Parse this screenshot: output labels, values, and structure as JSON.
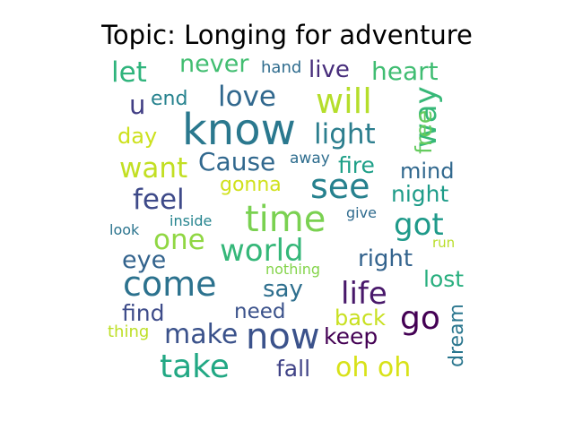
{
  "chart_data": {
    "type": "wordcloud",
    "title": "Topic: Longing for adventure",
    "words": [
      {
        "text": "know",
        "color": "#2a788e"
      },
      {
        "text": "time",
        "color": "#7ad151"
      },
      {
        "text": "now",
        "color": "#3b528b"
      },
      {
        "text": "come",
        "color": "#2c728e"
      },
      {
        "text": "see",
        "color": "#26818e"
      },
      {
        "text": "will",
        "color": "#b5de2b"
      },
      {
        "text": "take",
        "color": "#22a884"
      },
      {
        "text": "go",
        "color": "#440154"
      },
      {
        "text": "life",
        "color": "#48186a"
      },
      {
        "text": "world",
        "color": "#35b779"
      },
      {
        "text": "way",
        "color": "#37b878"
      },
      {
        "text": "love",
        "color": "#31688e"
      },
      {
        "text": "light",
        "color": "#2c7e8e"
      },
      {
        "text": "feel",
        "color": "#3e4a89"
      },
      {
        "text": "want",
        "color": "#c2df23"
      },
      {
        "text": "got",
        "color": "#1f9a8a"
      },
      {
        "text": "one",
        "color": "#90d743"
      },
      {
        "text": "let",
        "color": "#2fb47c"
      },
      {
        "text": "oh oh",
        "color": "#d8e219"
      },
      {
        "text": "make",
        "color": "#3b528b"
      },
      {
        "text": "Cause",
        "color": "#31688e"
      },
      {
        "text": "heart",
        "color": "#40bd72"
      },
      {
        "text": "never",
        "color": "#42be71"
      },
      {
        "text": "live",
        "color": "#472d7b"
      },
      {
        "text": "eye",
        "color": "#33638d"
      },
      {
        "text": "say",
        "color": "#2e6f8e"
      },
      {
        "text": "night",
        "color": "#1e9c89"
      },
      {
        "text": "right",
        "color": "#33638d"
      },
      {
        "text": "find",
        "color": "#3e4c8a"
      },
      {
        "text": "keep",
        "color": "#440154"
      },
      {
        "text": "fire",
        "color": "#1fa088"
      },
      {
        "text": "free",
        "color": "#65cb5e"
      },
      {
        "text": "lost",
        "color": "#29af7f"
      },
      {
        "text": "fall",
        "color": "#404387"
      },
      {
        "text": "back",
        "color": "#c8e020"
      },
      {
        "text": "need",
        "color": "#3b528b"
      },
      {
        "text": "u",
        "color": "#423f85"
      },
      {
        "text": "end",
        "color": "#26828e"
      },
      {
        "text": "day",
        "color": "#cde11d"
      },
      {
        "text": "mind",
        "color": "#31688e"
      },
      {
        "text": "gonna",
        "color": "#d0e11c"
      },
      {
        "text": "dream",
        "color": "#2a768e"
      },
      {
        "text": "hand",
        "color": "#2f6c8e"
      },
      {
        "text": "away",
        "color": "#2e6d8e"
      },
      {
        "text": "give",
        "color": "#2f6b8e"
      },
      {
        "text": "inside",
        "color": "#25848e"
      },
      {
        "text": "look",
        "color": "#2b748e"
      },
      {
        "text": "nothing",
        "color": "#84d44b"
      },
      {
        "text": "thing",
        "color": "#bddf26"
      },
      {
        "text": "run",
        "color": "#b8de29"
      }
    ]
  }
}
